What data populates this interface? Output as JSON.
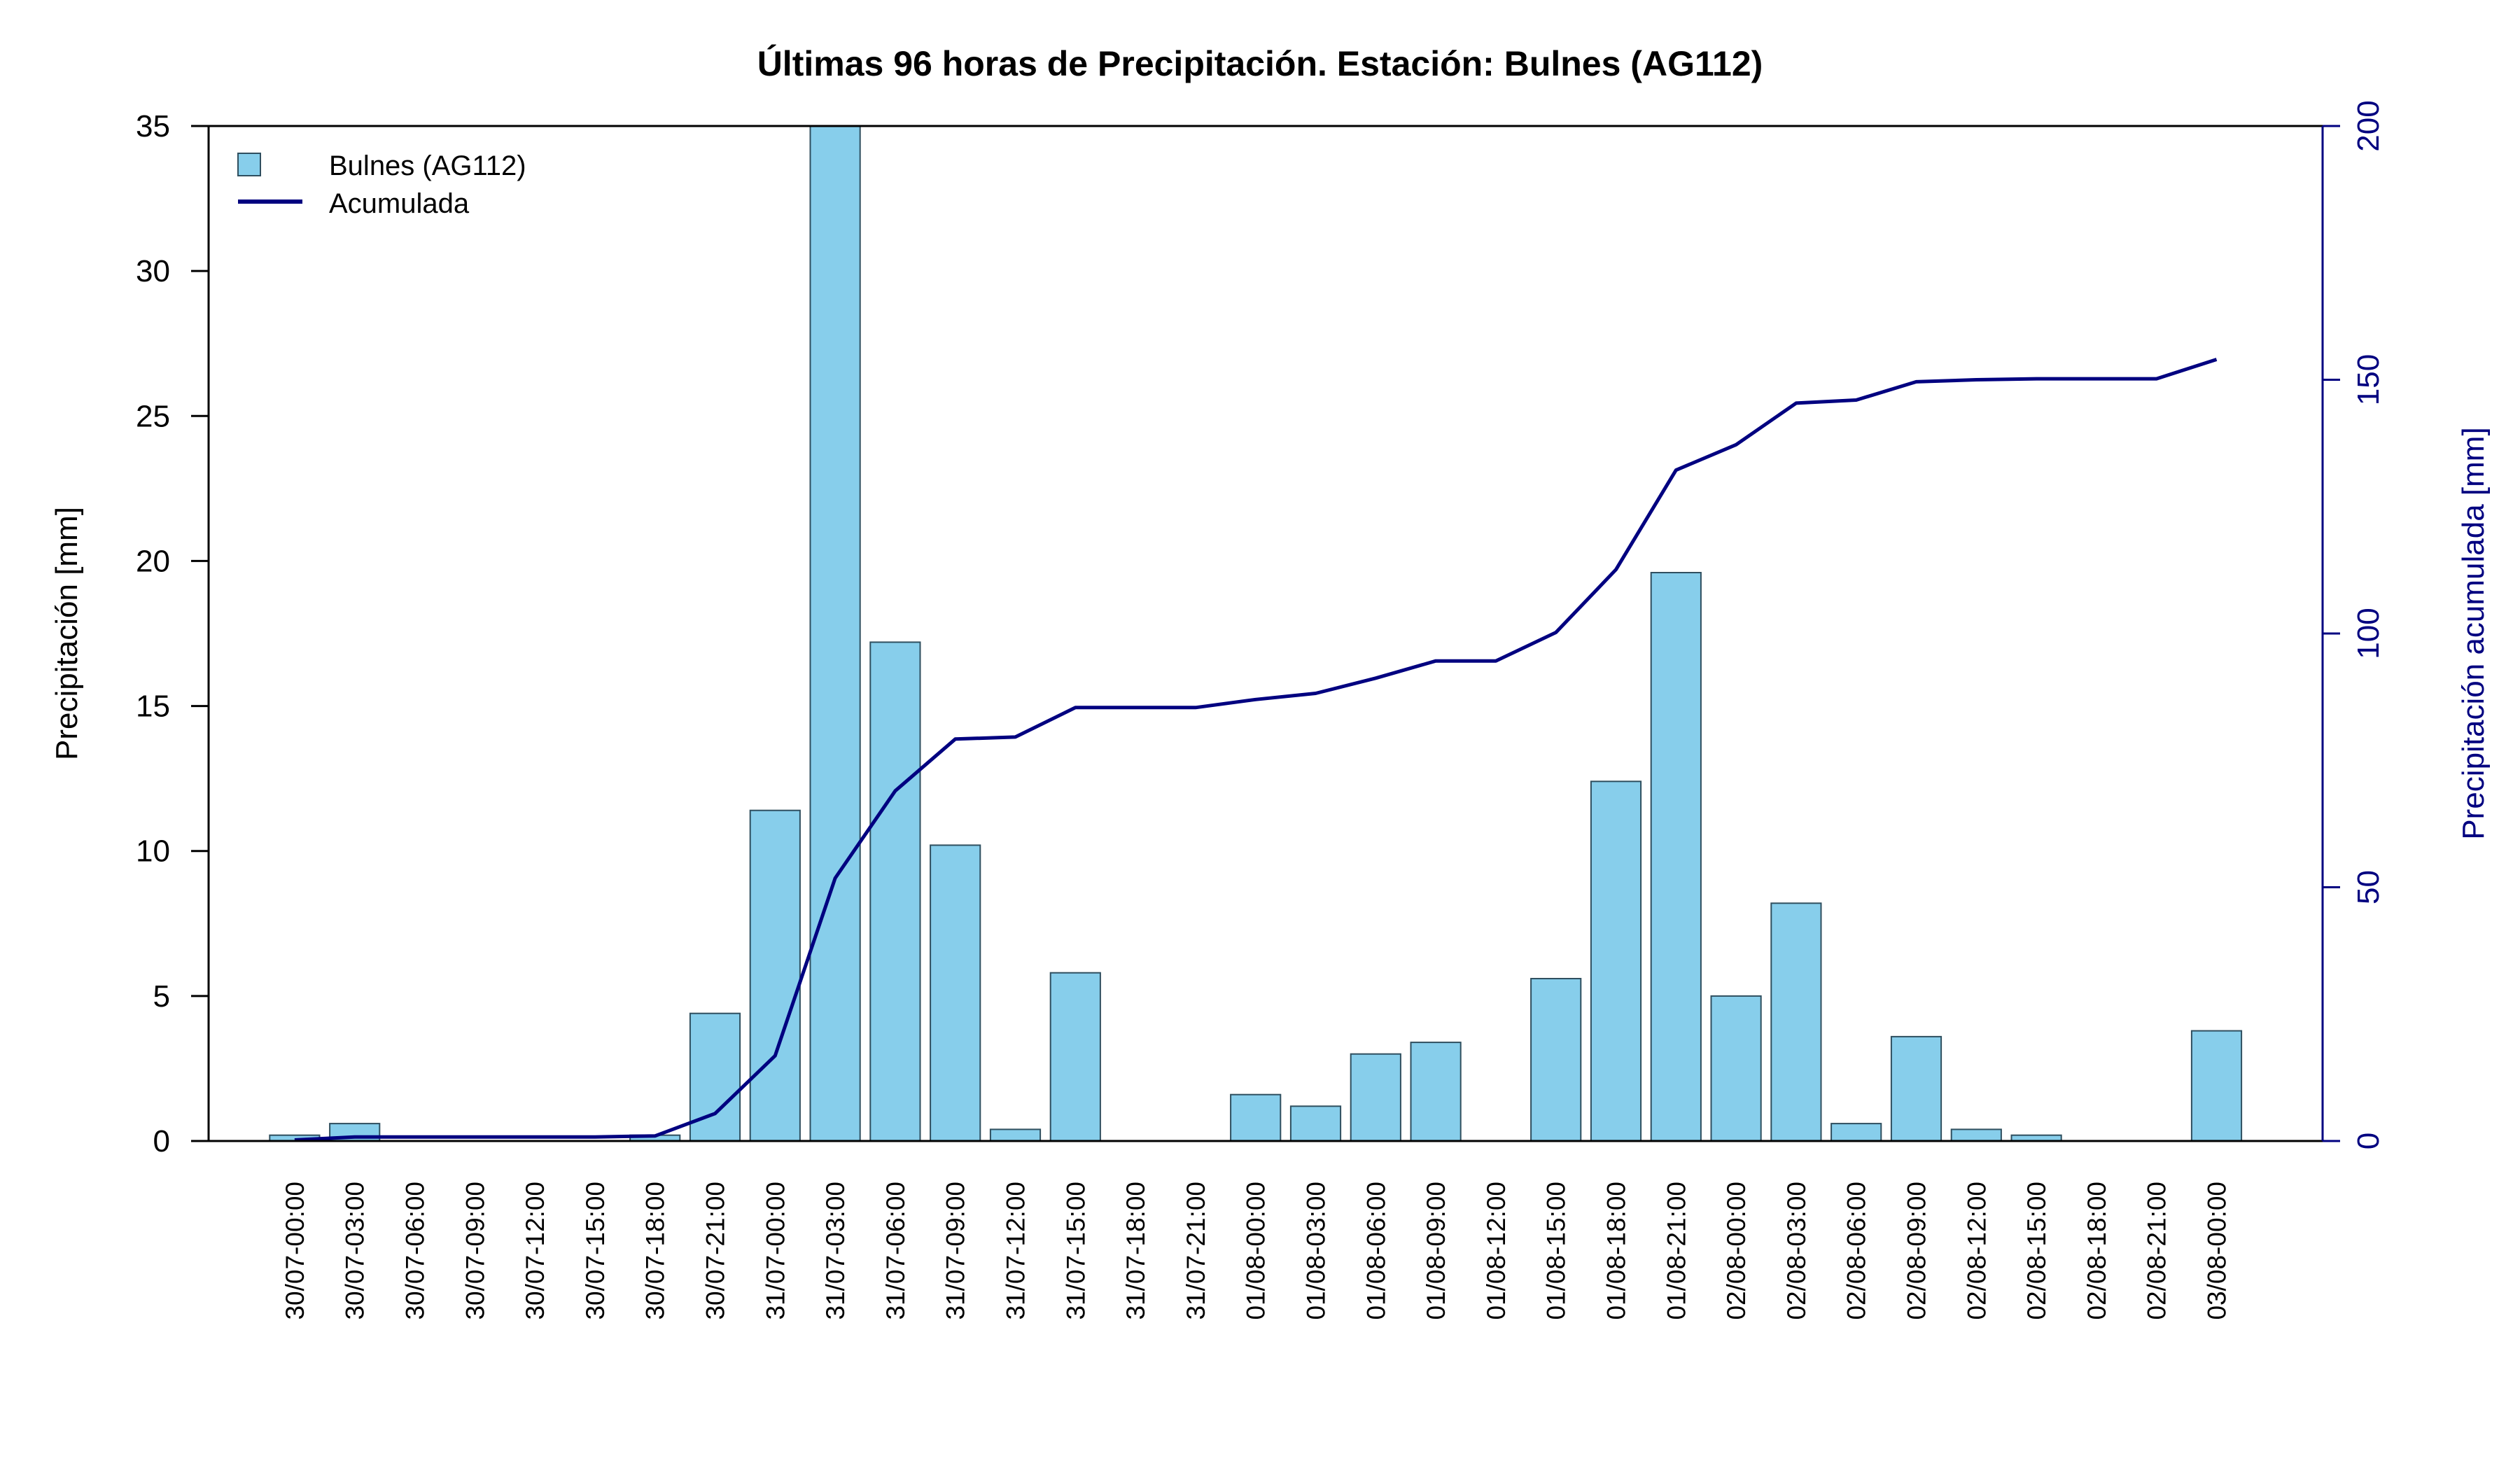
{
  "chart_data": {
    "type": "bar",
    "title": "Últimas 96 horas de Precipitación. Estación: Bulnes (AG112)",
    "ylabel": "Precipitación [mm]",
    "y2label": "Precipitación acumulada [mm]",
    "ylim": [
      0,
      35
    ],
    "y2lim": [
      0,
      200
    ],
    "yticks": [
      "0",
      "5",
      "10",
      "15",
      "20",
      "25",
      "30",
      "35"
    ],
    "y2ticks": [
      "0",
      "50",
      "100",
      "150",
      "200"
    ],
    "legend_position": "top-left",
    "categories": [
      "30/07-00:00",
      "30/07-03:00",
      "30/07-06:00",
      "30/07-09:00",
      "30/07-12:00",
      "30/07-15:00",
      "30/07-18:00",
      "30/07-21:00",
      "31/07-00:00",
      "31/07-03:00",
      "31/07-06:00",
      "31/07-09:00",
      "31/07-12:00",
      "31/07-15:00",
      "31/07-18:00",
      "31/07-21:00",
      "01/08-00:00",
      "01/08-03:00",
      "01/08-06:00",
      "01/08-09:00",
      "01/08-12:00",
      "01/08-15:00",
      "01/08-18:00",
      "01/08-21:00",
      "02/08-00:00",
      "02/08-03:00",
      "02/08-06:00",
      "02/08-09:00",
      "02/08-12:00",
      "02/08-15:00",
      "02/08-18:00",
      "02/08-21:00",
      "03/08-00:00"
    ],
    "series": [
      {
        "name": "Bulnes (AG112)",
        "type": "bar",
        "axis": "left",
        "color": "#87ceeb",
        "values": [
          0.2,
          0.6,
          0.0,
          0.0,
          0.0,
          0.0,
          0.2,
          4.4,
          11.4,
          35.0,
          17.2,
          10.2,
          0.4,
          5.8,
          0.0,
          0.0,
          1.6,
          1.2,
          3.0,
          3.4,
          0.0,
          5.6,
          12.4,
          19.6,
          5.0,
          8.2,
          0.6,
          3.6,
          0.4,
          0.2,
          0.0,
          0.0,
          3.8
        ]
      },
      {
        "name": "Acumulada",
        "type": "line",
        "axis": "right",
        "color": "#000080",
        "values": [
          0.2,
          0.8,
          0.8,
          0.8,
          0.8,
          0.8,
          1.0,
          5.4,
          16.8,
          51.8,
          69.0,
          79.2,
          79.6,
          85.4,
          85.4,
          85.4,
          87.0,
          88.2,
          91.2,
          94.6,
          94.6,
          100.2,
          112.6,
          132.2,
          137.2,
          145.4,
          146.0,
          149.6,
          150.0,
          150.2,
          150.2,
          150.2,
          154.0
        ]
      }
    ]
  }
}
